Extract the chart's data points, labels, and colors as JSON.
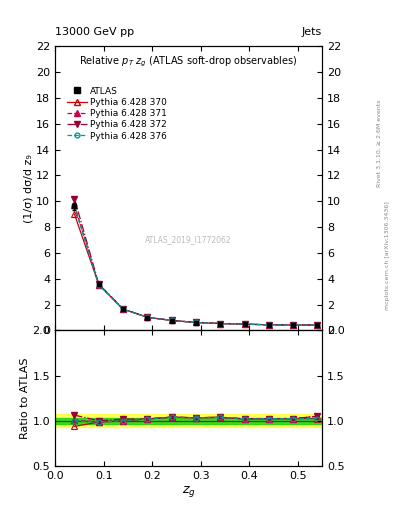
{
  "title_top": "13000 GeV pp",
  "title_top_right": "Jets",
  "plot_title": "Relative $p_T$ $z_g$ (ATLAS soft-drop observables)",
  "watermark": "ATLAS_2019_I1772062",
  "right_label_top": "Rivet 3.1.10, ≥ 2.6M events",
  "right_label_bot": "mcplots.cern.ch [arXiv:1306.3436]",
  "ylabel_main": "(1/σ) dσ/d z₉",
  "ylabel_ratio": "Ratio to ATLAS",
  "xlabel": "$z_g$",
  "xlim": [
    0.0,
    0.55
  ],
  "ylim_main": [
    0.0,
    22.0
  ],
  "ylim_ratio": [
    0.5,
    2.0
  ],
  "x_data": [
    0.04,
    0.09,
    0.14,
    0.19,
    0.24,
    0.29,
    0.34,
    0.39,
    0.44,
    0.49,
    0.54
  ],
  "atlas_y": [
    9.6,
    3.6,
    1.65,
    1.0,
    0.75,
    0.6,
    0.52,
    0.48,
    0.43,
    0.42,
    0.4
  ],
  "atlas_yerr": [
    0.3,
    0.15,
    0.08,
    0.05,
    0.04,
    0.03,
    0.025,
    0.025,
    0.02,
    0.02,
    0.02
  ],
  "py370_y": [
    9.0,
    3.55,
    1.65,
    1.02,
    0.78,
    0.62,
    0.54,
    0.49,
    0.44,
    0.43,
    0.41
  ],
  "py371_y": [
    9.7,
    3.55,
    1.65,
    1.02,
    0.78,
    0.62,
    0.54,
    0.49,
    0.44,
    0.43,
    0.42
  ],
  "py372_y": [
    10.2,
    3.6,
    1.68,
    1.02,
    0.78,
    0.62,
    0.54,
    0.49,
    0.44,
    0.43,
    0.42
  ],
  "py376_y": [
    9.6,
    3.55,
    1.65,
    1.02,
    0.78,
    0.62,
    0.54,
    0.49,
    0.44,
    0.43,
    0.41
  ],
  "color_370": "#cc0000",
  "color_371": "#cc0044",
  "color_372": "#990033",
  "color_376": "#009999",
  "color_atlas": "#000000",
  "band_yellow": "#ffff00",
  "band_green": "#00cc00",
  "yticks_main": [
    0,
    2,
    4,
    6,
    8,
    10,
    12,
    14,
    16,
    18,
    20,
    22
  ],
  "yticks_ratio": [
    0.5,
    1.0,
    1.5,
    2.0
  ],
  "xticks": [
    0.0,
    0.1,
    0.2,
    0.3,
    0.4,
    0.5
  ]
}
